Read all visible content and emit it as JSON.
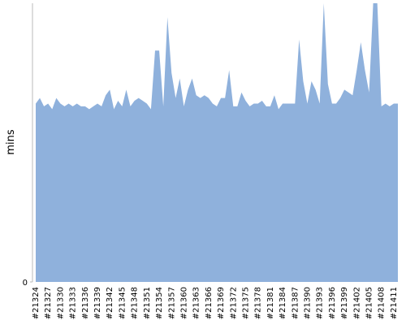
{
  "chart_data": {
    "type": "area",
    "y_label": "mins",
    "color": "#8fb1dc",
    "categories": [
      "#21324",
      null,
      null,
      "#21327",
      null,
      null,
      "#21330",
      null,
      null,
      "#21333",
      null,
      null,
      "#21336",
      null,
      null,
      "#21339",
      null,
      null,
      "#21342",
      null,
      null,
      "#21345",
      null,
      null,
      "#21348",
      null,
      null,
      "#21351",
      null,
      null,
      "#21354",
      null,
      null,
      "#21357",
      null,
      null,
      "#21360",
      null,
      null,
      "#21363",
      null,
      null,
      "#21366",
      null,
      null,
      "#21369",
      null,
      null,
      "#21372",
      null,
      null,
      "#21375",
      null,
      null,
      "#21378",
      null,
      null,
      "#21381",
      null,
      null,
      "#21384",
      null,
      null,
      "#21387",
      null,
      null,
      "#21390",
      null,
      null,
      "#21393",
      null,
      null,
      "#21396",
      null,
      null,
      "#21399",
      null,
      null,
      "#21402",
      null,
      null,
      "#21405",
      null,
      null,
      "#21408",
      null,
      null,
      "#21411",
      null
    ],
    "values": [
      64,
      66,
      63,
      64,
      62,
      66,
      64,
      63,
      64,
      63,
      64,
      63,
      63,
      62,
      63,
      64,
      63,
      67,
      69,
      62,
      65,
      63,
      69,
      63,
      65,
      66,
      65,
      64,
      62,
      83,
      83,
      63,
      95,
      75,
      66,
      73,
      63,
      69,
      73,
      67,
      66,
      67,
      66,
      64,
      63,
      66,
      66,
      76,
      63,
      63,
      68,
      65,
      63,
      64,
      64,
      65,
      63,
      63,
      67,
      62,
      64,
      64,
      64,
      64,
      87,
      72,
      64,
      72,
      69,
      64,
      100,
      71,
      64,
      64,
      66,
      69,
      68,
      67,
      76,
      86,
      76,
      68,
      100,
      100,
      63,
      64,
      63,
      64,
      64
    ],
    "ylim": [
      0,
      100
    ],
    "yticks": [
      0
    ]
  }
}
